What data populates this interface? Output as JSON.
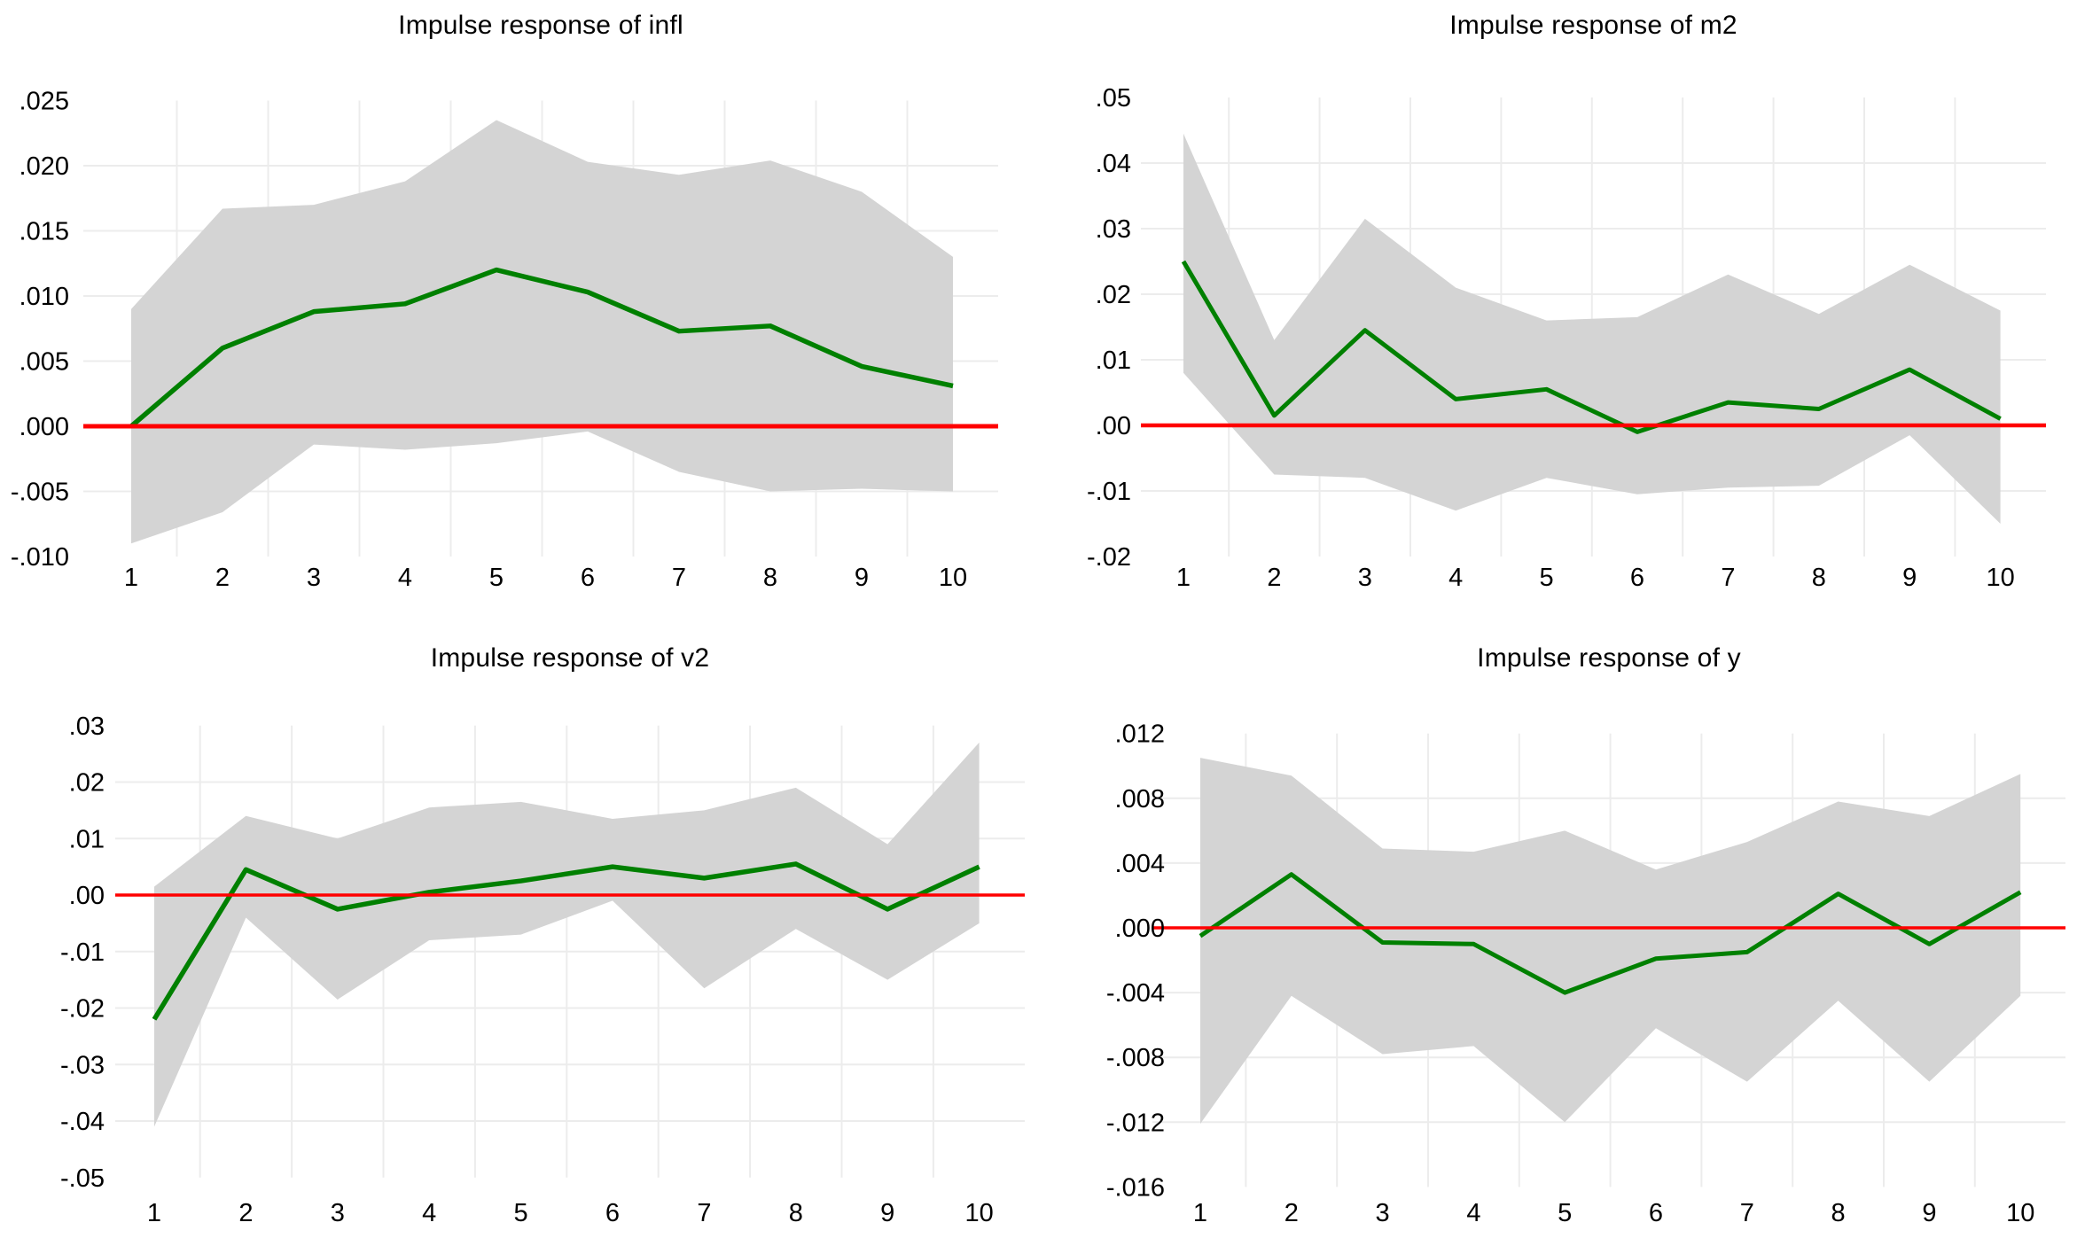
{
  "figure": {
    "background_color": "#ffffff",
    "text_color": "#000000",
    "grid_color": "#ececec",
    "band_color": "#d4d4d4",
    "irf_line_color": "#008000",
    "zero_line_color": "#ff0000"
  },
  "chart_data": [
    {
      "id": "infl",
      "type": "line",
      "title": "Impulse response of infl",
      "x": [
        1,
        2,
        3,
        4,
        5,
        6,
        7,
        8,
        9,
        10
      ],
      "xtick_labels": [
        "1",
        "2",
        "3",
        "4",
        "5",
        "6",
        "7",
        "8",
        "9",
        "10"
      ],
      "ylim": [
        -0.01,
        0.025
      ],
      "yticks": [
        0.025,
        0.02,
        0.015,
        0.01,
        0.005,
        0.0,
        -0.005,
        -0.01
      ],
      "ytick_labels": [
        ".025",
        ".020",
        ".015",
        ".010",
        ".005",
        ".000",
        "-.005",
        "-.010"
      ],
      "grid": "on",
      "legend": "none",
      "zero_line_value": 0,
      "series": [
        {
          "name": "impulse response",
          "role": "irf",
          "values": [
            0.0,
            0.006,
            0.0088,
            0.0094,
            0.012,
            0.0103,
            0.0073,
            0.0077,
            0.0046,
            0.0031
          ]
        },
        {
          "name": "upper confidence band",
          "role": "upper",
          "values": [
            0.009,
            0.0167,
            0.017,
            0.0188,
            0.0235,
            0.0203,
            0.0193,
            0.0204,
            0.018,
            0.013
          ]
        },
        {
          "name": "lower confidence band",
          "role": "lower",
          "values": [
            -0.009,
            -0.0066,
            -0.0014,
            -0.0018,
            -0.0013,
            -0.0004,
            -0.0035,
            -0.005,
            -0.0048,
            -0.005
          ]
        }
      ]
    },
    {
      "id": "m2",
      "type": "line",
      "title": "Impulse response of m2",
      "x": [
        1,
        2,
        3,
        4,
        5,
        6,
        7,
        8,
        9,
        10
      ],
      "xtick_labels": [
        "1",
        "2",
        "3",
        "4",
        "5",
        "6",
        "7",
        "8",
        "9",
        "10"
      ],
      "ylim": [
        -0.02,
        0.05
      ],
      "yticks": [
        0.05,
        0.04,
        0.03,
        0.02,
        0.01,
        0.0,
        -0.01,
        -0.02
      ],
      "ytick_labels": [
        ".05",
        ".04",
        ".03",
        ".02",
        ".01",
        ".00",
        "-.01",
        "-.02"
      ],
      "grid": "on",
      "legend": "none",
      "zero_line_value": 0,
      "series": [
        {
          "name": "impulse response",
          "role": "irf",
          "values": [
            0.025,
            0.0015,
            0.0145,
            0.004,
            0.0055,
            -0.001,
            0.0035,
            0.0025,
            0.0085,
            0.001
          ]
        },
        {
          "name": "upper confidence band",
          "role": "upper",
          "values": [
            0.0445,
            0.013,
            0.0315,
            0.021,
            0.016,
            0.0165,
            0.023,
            0.017,
            0.0245,
            0.0175
          ]
        },
        {
          "name": "lower confidence band",
          "role": "lower",
          "values": [
            0.008,
            -0.0075,
            -0.008,
            -0.013,
            -0.008,
            -0.0105,
            -0.0095,
            -0.0092,
            -0.0015,
            -0.015
          ]
        }
      ]
    },
    {
      "id": "v2",
      "type": "line",
      "title": "Impulse response of v2",
      "x": [
        1,
        2,
        3,
        4,
        5,
        6,
        7,
        8,
        9,
        10
      ],
      "xtick_labels": [
        "1",
        "2",
        "3",
        "4",
        "5",
        "6",
        "7",
        "8",
        "9",
        "10"
      ],
      "ylim": [
        -0.05,
        0.03
      ],
      "yticks": [
        0.03,
        0.02,
        0.01,
        0.0,
        -0.01,
        -0.02,
        -0.03,
        -0.04,
        -0.05
      ],
      "ytick_labels": [
        ".03",
        ".02",
        ".01",
        ".00",
        "-.01",
        "-.02",
        "-.03",
        "-.04",
        "-.05"
      ],
      "grid": "on",
      "legend": "none",
      "zero_line_value": 0,
      "series": [
        {
          "name": "impulse response",
          "role": "irf",
          "values": [
            -0.022,
            0.0045,
            -0.0025,
            0.0005,
            0.0025,
            0.005,
            0.003,
            0.0055,
            -0.0025,
            0.005
          ]
        },
        {
          "name": "upper confidence band",
          "role": "upper",
          "values": [
            0.0015,
            0.014,
            0.01,
            0.0155,
            0.0165,
            0.0135,
            0.015,
            0.019,
            0.009,
            0.027
          ]
        },
        {
          "name": "lower confidence band",
          "role": "lower",
          "values": [
            -0.041,
            -0.004,
            -0.0185,
            -0.008,
            -0.007,
            -0.001,
            -0.0165,
            -0.006,
            -0.015,
            -0.005
          ]
        }
      ]
    },
    {
      "id": "y",
      "type": "line",
      "title": "Impulse response of y",
      "x": [
        1,
        2,
        3,
        4,
        5,
        6,
        7,
        8,
        9,
        10
      ],
      "xtick_labels": [
        "1",
        "2",
        "3",
        "4",
        "5",
        "6",
        "7",
        "8",
        "9",
        "10"
      ],
      "ylim": [
        -0.016,
        0.012
      ],
      "yticks": [
        0.012,
        0.008,
        0.004,
        0.0,
        -0.004,
        -0.008,
        -0.012,
        -0.016
      ],
      "ytick_labels": [
        ".012",
        ".008",
        ".004",
        ".000",
        "-.004",
        "-.008",
        "-.012",
        "-.016"
      ],
      "grid": "on",
      "legend": "none",
      "zero_line_value": 0,
      "series": [
        {
          "name": "impulse response",
          "role": "irf",
          "values": [
            -0.0005,
            0.0033,
            -0.0009,
            -0.001,
            -0.004,
            -0.0019,
            -0.0015,
            0.0021,
            -0.001,
            0.0022
          ]
        },
        {
          "name": "upper confidence band",
          "role": "upper",
          "values": [
            0.0105,
            0.0094,
            0.0049,
            0.0047,
            0.006,
            0.0036,
            0.0053,
            0.0078,
            0.0069,
            0.0095
          ]
        },
        {
          "name": "lower confidence band",
          "role": "lower",
          "values": [
            -0.0121,
            -0.0042,
            -0.0078,
            -0.0073,
            -0.012,
            -0.0062,
            -0.0095,
            -0.0045,
            -0.0095,
            -0.0042
          ]
        }
      ]
    }
  ]
}
